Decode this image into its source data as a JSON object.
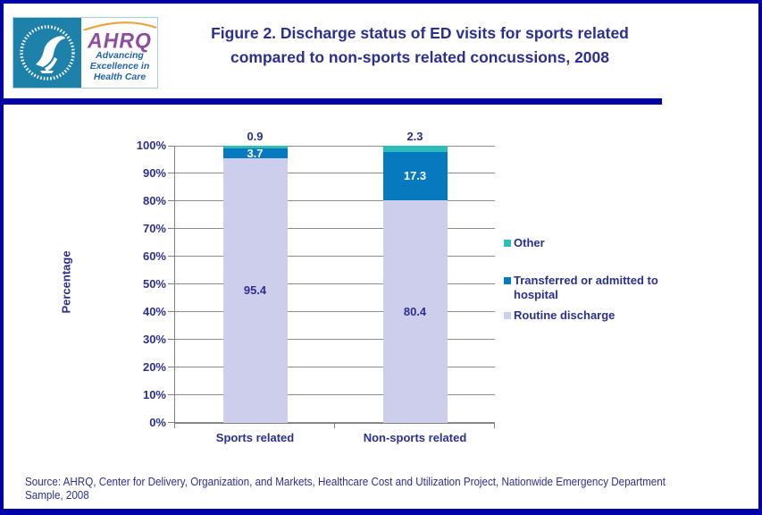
{
  "header": {
    "logo": {
      "hhs_seal_text": "Department of Health & Human Services USA",
      "ahrq_acronym": "AHRQ",
      "tagline_lines": [
        "Advancing",
        "Excellence in",
        "Health Care"
      ]
    },
    "title_line1": "Figure 2. Discharge status of ED visits for sports related",
    "title_line2": "compared to non-sports related concussions, 2008"
  },
  "chart_data": {
    "type": "bar",
    "stacked": true,
    "title": "Figure 2. Discharge status of ED visits for sports related compared to non-sports related concussions, 2008",
    "ylabel": "Percentage",
    "xlabel": "",
    "ylim": [
      0,
      100
    ],
    "ytick_step": 10,
    "ytick_format": "percent",
    "grid": true,
    "legend_position": "right",
    "categories": [
      "Sports related",
      "Non-sports related"
    ],
    "series": [
      {
        "name": "Routine discharge",
        "values": [
          95.4,
          80.4
        ],
        "color": "#CDCDEC",
        "label_position": "inside",
        "label_color": "#2B2F90"
      },
      {
        "name": "Transferred or admitted to hospital",
        "values": [
          3.7,
          17.3
        ],
        "color": "#0779BF",
        "label_position": "inside",
        "label_color": "#FFFFFF"
      },
      {
        "name": "Other",
        "values": [
          0.9,
          2.3
        ],
        "color": "#2FBCB9",
        "label_position": "above",
        "label_color": "#2B2F90"
      }
    ]
  },
  "footer": {
    "source_line1": "Source: AHRQ, Center for Delivery, Organization, and Markets, Healthcare Cost and Utilization Project, Nationwide Emergency Department",
    "source_line2": "Sample, 2008"
  },
  "colors": {
    "border_navy": "#0000A6",
    "text_navy": "#2B2F90",
    "gridline_gray": "#808080",
    "hhs_teal": "#1E81A9",
    "ahrq_purple": "#8E4D9F",
    "ahrq_arc_orange": "#E8A43F",
    "tagline_blue": "#2165AE",
    "series_other": "#2FBCB9",
    "series_transferred": "#0779BF",
    "series_routine": "#CDCDEC"
  }
}
